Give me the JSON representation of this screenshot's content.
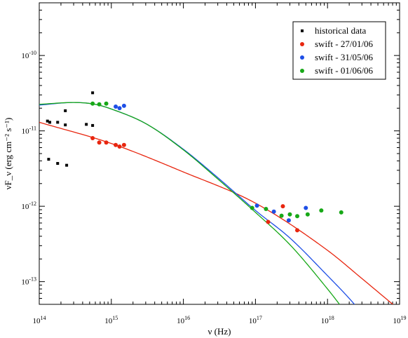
{
  "chart_data": {
    "type": "scatter",
    "x_scale": "log",
    "y_scale": "log",
    "xlim": [
      100000000000000.0,
      1e+19
    ],
    "ylim": [
      5e-14,
      5e-10
    ],
    "xlabel": "ν (Hz)",
    "ylabel": "νF_ν  (erg cm⁻² s⁻¹)",
    "x_ticks": [
      {
        "mantissa": "10",
        "exp": "14"
      },
      {
        "mantissa": "10",
        "exp": "15"
      },
      {
        "mantissa": "10",
        "exp": "16"
      },
      {
        "mantissa": "10",
        "exp": "17"
      },
      {
        "mantissa": "10",
        "exp": "18"
      },
      {
        "mantissa": "10",
        "exp": "19"
      }
    ],
    "y_ticks": [
      {
        "mantissa": "10",
        "exp": "-13"
      },
      {
        "mantissa": "10",
        "exp": "-12"
      },
      {
        "mantissa": "10",
        "exp": "-11"
      },
      {
        "mantissa": "10",
        "exp": "-10"
      }
    ],
    "legend_position": "top-right",
    "series": [
      {
        "name": "historical data",
        "color": "#000000",
        "marker": "square",
        "points": [
          {
            "x": 130000000000000.0,
            "y": 1.35e-11
          },
          {
            "x": 140000000000000.0,
            "y": 1.3e-11
          },
          {
            "x": 135000000000000.0,
            "y": 4.2e-12
          },
          {
            "x": 180000000000000.0,
            "y": 1.3e-11
          },
          {
            "x": 180000000000000.0,
            "y": 3.7e-12
          },
          {
            "x": 230000000000000.0,
            "y": 1.85e-11
          },
          {
            "x": 230000000000000.0,
            "y": 1.2e-11
          },
          {
            "x": 240000000000000.0,
            "y": 3.5e-12
          },
          {
            "x": 450000000000000.0,
            "y": 1.22e-11
          },
          {
            "x": 550000000000000.0,
            "y": 1.18e-11
          },
          {
            "x": 550000000000000.0,
            "y": 3.2e-11
          }
        ]
      },
      {
        "name": "swift - 27/01/06",
        "color": "#e8260f",
        "marker": "circle",
        "points": [
          {
            "x": 550000000000000.0,
            "y": 8e-12
          },
          {
            "x": 680000000000000.0,
            "y": 7e-12
          },
          {
            "x": 850000000000000.0,
            "y": 7e-12
          },
          {
            "x": 1150000000000000.0,
            "y": 6.5e-12
          },
          {
            "x": 1300000000000000.0,
            "y": 6.2e-12
          },
          {
            "x": 1500000000000000.0,
            "y": 6.5e-12
          },
          {
            "x": 1.5e+17,
            "y": 6.2e-13
          },
          {
            "x": 2.4e+17,
            "y": 1e-12
          },
          {
            "x": 3.8e+17,
            "y": 4.8e-13
          }
        ]
      },
      {
        "name": "swift - 31/05/06",
        "color": "#1e4fe6",
        "marker": "circle",
        "points": [
          {
            "x": 1150000000000000.0,
            "y": 2.1e-11
          },
          {
            "x": 1300000000000000.0,
            "y": 2e-11
          },
          {
            "x": 1500000000000000.0,
            "y": 2.15e-11
          },
          {
            "x": 1.05e+17,
            "y": 1.02e-12
          },
          {
            "x": 1.8e+17,
            "y": 8.5e-13
          },
          {
            "x": 2.9e+17,
            "y": 6.5e-13
          },
          {
            "x": 5e+17,
            "y": 9.5e-13
          }
        ]
      },
      {
        "name": "swift - 01/06/06",
        "color": "#17a817",
        "marker": "circle",
        "points": [
          {
            "x": 550000000000000.0,
            "y": 2.3e-11
          },
          {
            "x": 680000000000000.0,
            "y": 2.25e-11
          },
          {
            "x": 850000000000000.0,
            "y": 2.3e-11
          },
          {
            "x": 9e+16,
            "y": 9.5e-13
          },
          {
            "x": 1.4e+17,
            "y": 9.2e-13
          },
          {
            "x": 2.3e+17,
            "y": 7.5e-13
          },
          {
            "x": 3e+17,
            "y": 7.8e-13
          },
          {
            "x": 3.8e+17,
            "y": 7.4e-13
          },
          {
            "x": 5.3e+17,
            "y": 7.8e-13
          },
          {
            "x": 8.2e+17,
            "y": 8.8e-13
          },
          {
            "x": 1.55e+18,
            "y": 8.3e-13
          }
        ]
      }
    ],
    "model_curves": [
      {
        "color": "#e8260f",
        "points": [
          [
            100000000000000.0,
            1.3e-11
          ],
          [
            1000000000000000.0,
            6.8e-12
          ],
          [
            1e+16,
            2.85e-12
          ],
          [
            1e+17,
            1.1e-12
          ],
          [
            1e+18,
            2.6e-13
          ],
          [
            3e+18,
            1.1e-13
          ],
          [
            1e+19,
            4.2e-14
          ]
        ]
      },
      {
        "color": "#1e4fe6",
        "points": [
          [
            100000000000000.0,
            2.2e-11
          ],
          [
            300000000000000.0,
            2.38e-11
          ],
          [
            600000000000000.0,
            2.25e-11
          ],
          [
            1000000000000000.0,
            1.95e-11
          ],
          [
            3000000000000000.0,
            1.25e-11
          ],
          [
            1e+16,
            5.7e-12
          ],
          [
            3e+16,
            2.4e-12
          ],
          [
            1e+17,
            8.8e-13
          ],
          [
            3e+17,
            3.8e-13
          ],
          [
            1e+18,
            1.2e-13
          ],
          [
            2e+18,
            6e-14
          ],
          [
            2.6e+18,
            4.5e-14
          ]
        ]
      },
      {
        "color": "#17a817",
        "points": [
          [
            100000000000000.0,
            2.25e-11
          ],
          [
            300000000000000.0,
            2.38e-11
          ],
          [
            600000000000000.0,
            2.25e-11
          ],
          [
            1000000000000000.0,
            1.95e-11
          ],
          [
            3000000000000000.0,
            1.25e-11
          ],
          [
            1e+16,
            5.6e-12
          ],
          [
            3e+16,
            2.3e-12
          ],
          [
            1e+17,
            8.3e-13
          ],
          [
            3e+17,
            3.1e-13
          ],
          [
            1e+18,
            8e-14
          ],
          [
            1.6e+18,
            4.5e-14
          ]
        ]
      }
    ]
  }
}
